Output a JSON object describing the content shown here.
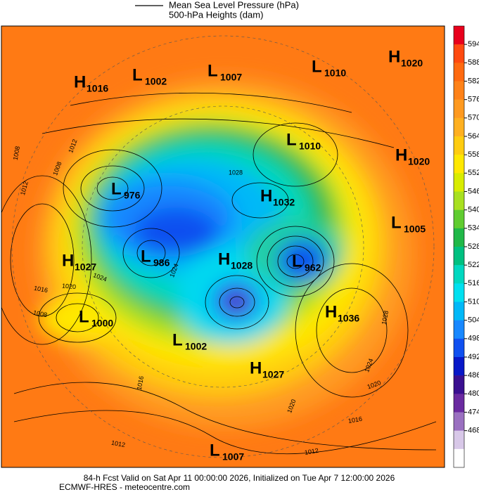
{
  "legend": {
    "pressure": "Mean Sea Level Pressure (hPa)",
    "heights": "500-hPa Heights (dam)"
  },
  "colorbar": {
    "ticks": [
      594,
      588,
      582,
      576,
      570,
      564,
      558,
      552,
      546,
      540,
      534,
      528,
      522,
      516,
      510,
      504,
      498,
      492,
      486,
      480,
      474,
      468
    ],
    "colors": [
      "#e8001c",
      "#ff4a10",
      "#ff6a10",
      "#ff8218",
      "#ff9a20",
      "#ffb020",
      "#ffcc10",
      "#ffe800",
      "#d8ec00",
      "#a8e020",
      "#60cc30",
      "#20b848",
      "#00c080",
      "#00d8c0",
      "#00e0f0",
      "#00b8f8",
      "#1888ff",
      "#1050f0",
      "#0818c8",
      "#3a1090",
      "#6a2aa0",
      "#9a70c0",
      "#d8c8e8",
      "#ffffff"
    ]
  },
  "centers": [
    {
      "kind": "H",
      "value": 1016
    },
    {
      "kind": "L",
      "value": 1002
    },
    {
      "kind": "L",
      "value": 1007
    },
    {
      "kind": "L",
      "value": 1010
    },
    {
      "kind": "H",
      "value": 1020
    },
    {
      "kind": "L",
      "value": 1010
    },
    {
      "kind": "H",
      "value": 1020
    },
    {
      "kind": "L",
      "value": 976
    },
    {
      "kind": "H",
      "value": 1032
    },
    {
      "kind": "L",
      "value": 1005
    },
    {
      "kind": "H",
      "value": 1027
    },
    {
      "kind": "L",
      "value": 986
    },
    {
      "kind": "H",
      "value": 1028
    },
    {
      "kind": "L",
      "value": 962
    },
    {
      "kind": "H",
      "value": 1036
    },
    {
      "kind": "L",
      "value": 1000
    },
    {
      "kind": "L",
      "value": 1002
    },
    {
      "kind": "H",
      "value": 1027
    },
    {
      "kind": "L",
      "value": 1007
    }
  ],
  "contour_labels": [
    1008,
    1012,
    1012,
    1008,
    1016,
    1020,
    1024,
    1008,
    1028,
    1028,
    1024,
    1020,
    1020,
    1016,
    1012,
    1012,
    1016,
    1024
  ],
  "footer": {
    "valid": "84-h Fcst Valid on Sat Apr 11 00:00:00 2026, Initialized on Tue Apr  7 12:00:00 2026",
    "source": "ECMWF-HRES - meteocentre.com"
  }
}
